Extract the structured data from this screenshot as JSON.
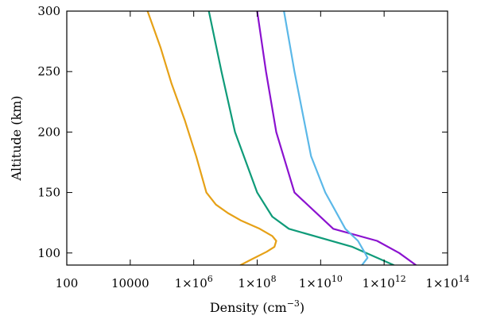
{
  "chart_data": {
    "type": "line",
    "title": "",
    "xlabel": "Density (cm",
    "xlabel_exponent": "−3",
    "xlabel_suffix": ")",
    "ylabel": "Altitude (km)",
    "x_scale": "log",
    "xlim": [
      100,
      100000000000000
    ],
    "ylim": [
      90,
      300
    ],
    "x_ticks": [
      {
        "value": 100,
        "label": "100"
      },
      {
        "value": 10000,
        "label": "10000"
      },
      {
        "value": 1000000,
        "mantissa": "1×10",
        "exp": "6"
      },
      {
        "value": 100000000,
        "mantissa": "1×10",
        "exp": "8"
      },
      {
        "value": 10000000000,
        "mantissa": "1×10",
        "exp": "10"
      },
      {
        "value": 1000000000000,
        "mantissa": "1×10",
        "exp": "12"
      },
      {
        "value": 100000000000000,
        "mantissa": "1×10",
        "exp": "14"
      }
    ],
    "y_ticks": [
      100,
      150,
      200,
      250,
      300
    ],
    "grid": false,
    "legend": "none",
    "series": [
      {
        "color": "#E6A117",
        "points": [
          [
            30000000,
            90
          ],
          [
            70000000,
            95
          ],
          [
            200000000,
            101
          ],
          [
            350000000,
            105
          ],
          [
            400000000,
            110
          ],
          [
            300000000,
            114
          ],
          [
            120000000,
            120
          ],
          [
            30000000,
            127
          ],
          [
            12000000,
            133
          ],
          [
            5000000,
            140
          ],
          [
            2500000,
            150
          ],
          [
            1200000,
            180
          ],
          [
            520000,
            210
          ],
          [
            200000,
            240
          ],
          [
            90000,
            270
          ],
          [
            35000,
            300
          ]
        ]
      },
      {
        "color": "#0F9B79",
        "points": [
          [
            2000000000000,
            90
          ],
          [
            100000000000,
            105
          ],
          [
            1000000000,
            120
          ],
          [
            300000000,
            130
          ],
          [
            100000000,
            150
          ],
          [
            20000000,
            200
          ],
          [
            7500000,
            250
          ],
          [
            3000000,
            300
          ]
        ]
      },
      {
        "color": "#8B12CF",
        "points": [
          [
            10000000000000,
            90
          ],
          [
            3000000000000,
            100
          ],
          [
            600000000000,
            110
          ],
          [
            25000000000,
            120
          ],
          [
            1500000000,
            150
          ],
          [
            400000000,
            200
          ],
          [
            190000000,
            250
          ],
          [
            100000000,
            300
          ]
        ]
      },
      {
        "color": "#5BB8E8",
        "points": [
          [
            200000000000,
            90
          ],
          [
            300000000000,
            96
          ],
          [
            250000000000,
            100
          ],
          [
            150000000000,
            110
          ],
          [
            60000000000,
            120
          ],
          [
            14000000000,
            150
          ],
          [
            5000000000,
            180
          ],
          [
            1500000000,
            250
          ],
          [
            700000000,
            300
          ]
        ]
      }
    ]
  }
}
